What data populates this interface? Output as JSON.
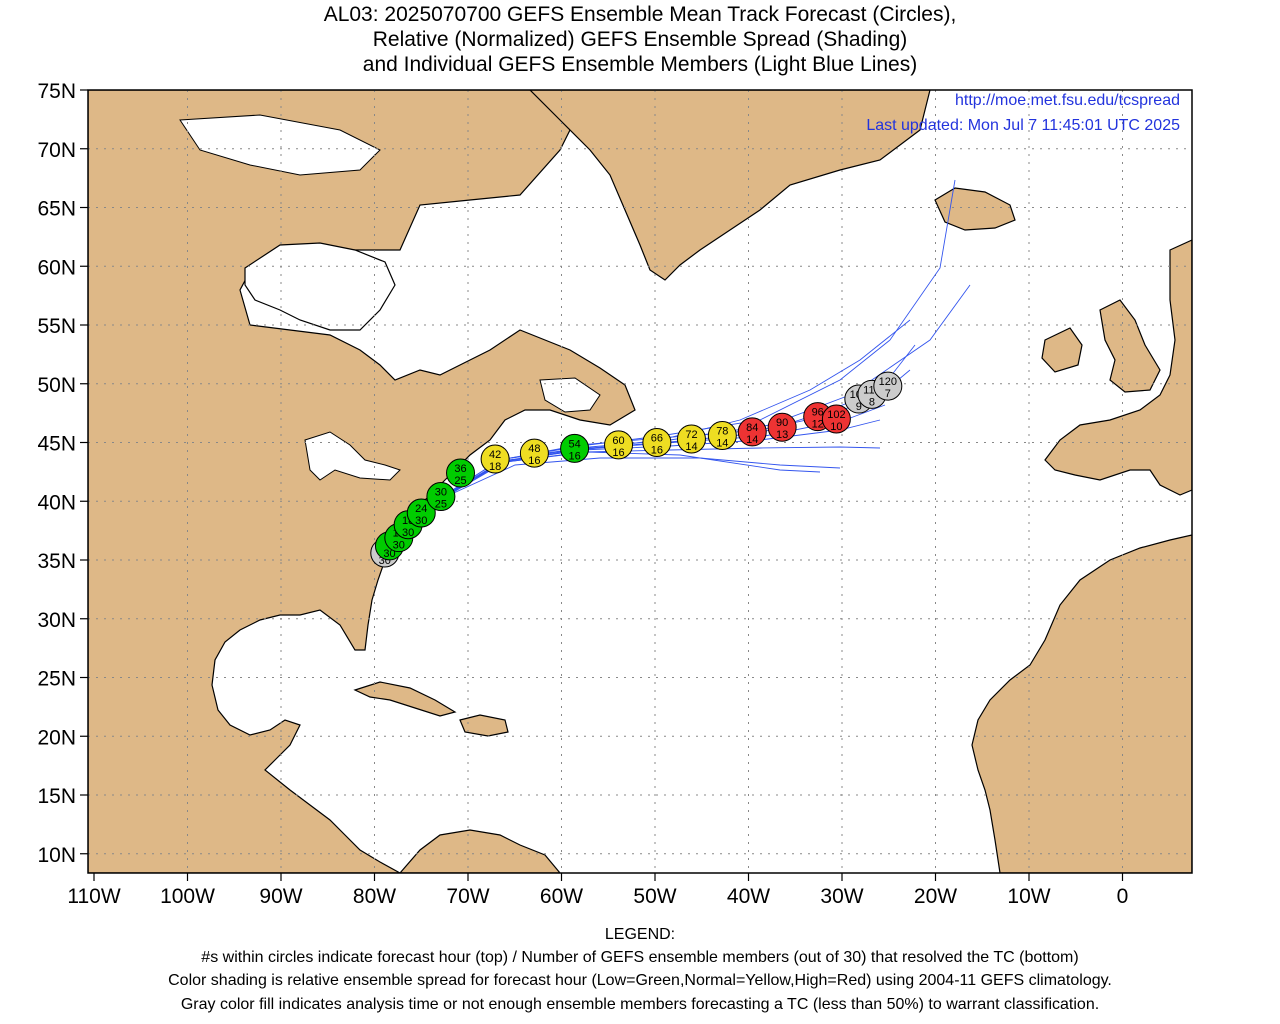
{
  "title": {
    "line1": "AL03: 2025070700 GEFS Ensemble Mean Track Forecast (Circles),",
    "line2": "Relative (Normalized) GEFS Ensemble Spread (Shading)",
    "line3": "and Individual GEFS Ensemble Members (Light Blue Lines)"
  },
  "credit": {
    "url": "http://moe.met.fsu.edu/tcspread",
    "updated": "Last updated: Mon Jul 7 11:45:01 UTC 2025"
  },
  "lat_ticks": [
    "75N",
    "70N",
    "65N",
    "60N",
    "55N",
    "50N",
    "45N",
    "40N",
    "35N",
    "30N",
    "25N",
    "20N",
    "15N",
    "10N"
  ],
  "lon_ticks": [
    "110W",
    "100W",
    "90W",
    "80W",
    "70W",
    "60W",
    "50W",
    "40W",
    "30W",
    "20W",
    "10W",
    "0"
  ],
  "colors": {
    "land": "#deb887",
    "ocean": "#ffffff",
    "member_tracks": "#3355ee",
    "low_spread": "#00cc00",
    "normal_spread": "#eedd22",
    "high_spread": "#ee3333",
    "unclassified": "#cccccc"
  },
  "track_points": [
    {
      "hour": "0",
      "members": "30",
      "lon": -78.9,
      "lat": 35.6,
      "class": "gray"
    },
    {
      "hour": "6",
      "members": "30",
      "lon": -78.4,
      "lat": 36.2,
      "class": "green"
    },
    {
      "hour": "12",
      "members": "30",
      "lon": -77.4,
      "lat": 36.9,
      "class": "green"
    },
    {
      "hour": "18",
      "members": "30",
      "lon": -76.4,
      "lat": 38.0,
      "class": "green"
    },
    {
      "hour": "24",
      "members": "30",
      "lon": -75.0,
      "lat": 39.0,
      "class": "green"
    },
    {
      "hour": "30",
      "members": "25",
      "lon": -72.9,
      "lat": 40.4,
      "class": "green"
    },
    {
      "hour": "36",
      "members": "25",
      "lon": -70.8,
      "lat": 42.4,
      "class": "green"
    },
    {
      "hour": "42",
      "members": "18",
      "lon": -67.1,
      "lat": 43.6,
      "class": "yellow"
    },
    {
      "hour": "48",
      "members": "16",
      "lon": -62.9,
      "lat": 44.1,
      "class": "yellow"
    },
    {
      "hour": "54",
      "members": "16",
      "lon": -58.6,
      "lat": 44.5,
      "class": "green"
    },
    {
      "hour": "60",
      "members": "16",
      "lon": -53.9,
      "lat": 44.8,
      "class": "yellow"
    },
    {
      "hour": "66",
      "members": "16",
      "lon": -49.8,
      "lat": 45.0,
      "class": "yellow"
    },
    {
      "hour": "72",
      "members": "14",
      "lon": -46.1,
      "lat": 45.3,
      "class": "yellow"
    },
    {
      "hour": "78",
      "members": "14",
      "lon": -42.8,
      "lat": 45.6,
      "class": "yellow"
    },
    {
      "hour": "84",
      "members": "14",
      "lon": -39.6,
      "lat": 45.9,
      "class": "red"
    },
    {
      "hour": "90",
      "members": "13",
      "lon": -36.4,
      "lat": 46.3,
      "class": "red"
    },
    {
      "hour": "96",
      "members": "12",
      "lon": -32.6,
      "lat": 47.2,
      "class": "red"
    },
    {
      "hour": "102",
      "members": "10",
      "lon": -30.6,
      "lat": 47.0,
      "class": "red"
    },
    {
      "hour": "108",
      "members": "9",
      "lon": -28.2,
      "lat": 48.7,
      "class": "gray"
    },
    {
      "hour": "114",
      "members": "8",
      "lon": -26.8,
      "lat": 49.1,
      "class": "gray"
    },
    {
      "hour": "120",
      "members": "7",
      "lon": -25.1,
      "lat": 49.8,
      "class": "gray"
    }
  ],
  "legend": {
    "heading": "LEGEND:",
    "line1": "#s within circles indicate forecast hour (top) / Number of GEFS ensemble members (out of 30) that resolved the TC (bottom)",
    "line2": "Color shading is relative ensemble spread for forecast hour (Low=Green,Normal=Yellow,High=Red) using 2004-11 GEFS climatology.",
    "line3": "Gray color fill indicates analysis time or not enough ensemble members forecasting a TC (less than 50%) to warrant classification."
  }
}
